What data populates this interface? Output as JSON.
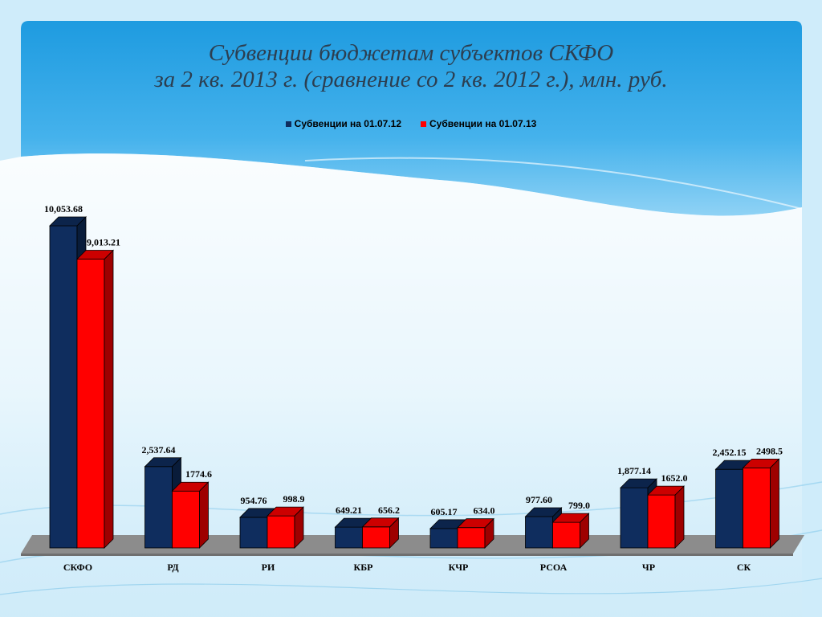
{
  "chart_data": {
    "type": "bar",
    "title_line1": "Субвенции бюджетам субъектов СКФО",
    "title_line2": "за 2 кв. 2013 г. (сравнение со 2 кв. 2012 г.), млн. руб.",
    "categories": [
      "СКФО",
      "РД",
      "РИ",
      "КБР",
      "КЧР",
      "РСОА",
      "ЧР",
      "СК"
    ],
    "series": [
      {
        "name": "Субвенции на 01.07.12",
        "color": "#0f2d5e",
        "values": [
          10053.68,
          2537.64,
          954.76,
          649.21,
          605.17,
          977.6,
          1877.14,
          2452.15
        ],
        "labels": [
          "10,053.68",
          "2,537.64",
          "954.76",
          "649.21",
          "605.17",
          "977.60",
          "1,877.14",
          "2,452.15"
        ]
      },
      {
        "name": "Субвенции на 01.07.13",
        "color": "#ff0000",
        "values": [
          9013.21,
          1774.6,
          998.9,
          656.2,
          634.0,
          799.0,
          1652.0,
          2498.5
        ],
        "labels": [
          "9,013.21",
          "1774.6",
          "998.9",
          "656.2",
          "634.0",
          "799.0",
          "1652.0",
          "2498.5"
        ]
      }
    ],
    "ylim": [
      0,
      10053.68
    ],
    "grid": false,
    "legend_position": "top",
    "style": "3d-column"
  }
}
